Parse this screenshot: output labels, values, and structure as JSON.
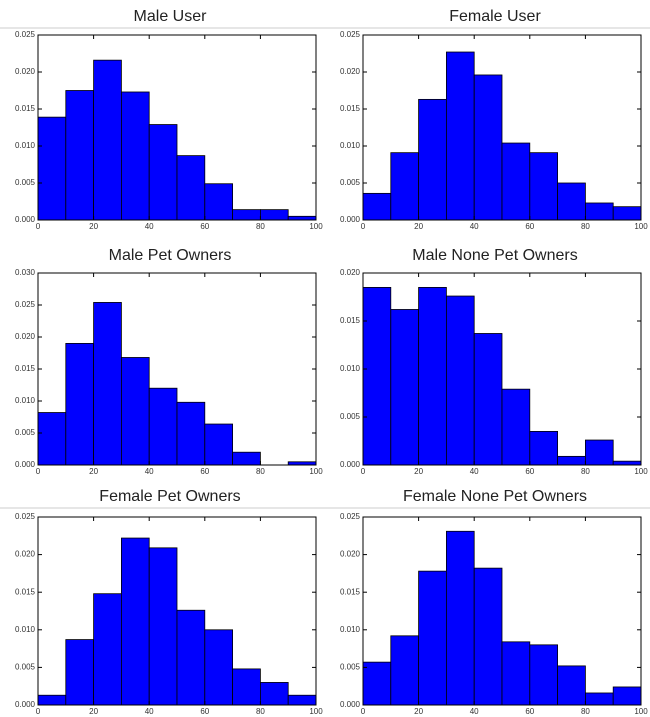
{
  "chart_data": [
    {
      "type": "histogram",
      "title": "Male User",
      "color": "#0000ff",
      "bins": [
        0,
        10,
        20,
        30,
        40,
        50,
        60,
        70,
        80,
        90,
        100
      ],
      "values": [
        0.0139,
        0.0175,
        0.0216,
        0.0173,
        0.0129,
        0.0087,
        0.0049,
        0.0014,
        0.0014,
        0.0005
      ],
      "xlim": [
        0,
        100
      ],
      "xticks": [
        0,
        20,
        40,
        60,
        80,
        100
      ],
      "ylim": [
        0,
        0.025
      ],
      "yticks": [
        {
          "value": 0,
          "label": "0.000"
        },
        {
          "value": 0.005,
          "label": "0.005"
        },
        {
          "value": 0.01,
          "label": "0.010"
        },
        {
          "value": 0.015,
          "label": "0.015"
        },
        {
          "value": 0.02,
          "label": "0.020"
        },
        {
          "value": 0.025,
          "label": "0.025"
        }
      ]
    },
    {
      "type": "histogram",
      "title": "Female User",
      "color": "#0000ff",
      "bins": [
        0,
        10,
        20,
        30,
        40,
        50,
        60,
        70,
        80,
        90,
        100
      ],
      "values": [
        0.0036,
        0.0091,
        0.0163,
        0.0227,
        0.0196,
        0.0104,
        0.0091,
        0.005,
        0.0023,
        0.0018
      ],
      "xlim": [
        0,
        100
      ],
      "xticks": [
        0,
        20,
        40,
        60,
        80,
        100
      ],
      "ylim": [
        0,
        0.025
      ],
      "yticks": [
        {
          "value": 0,
          "label": "0.000"
        },
        {
          "value": 0.005,
          "label": "0.005"
        },
        {
          "value": 0.01,
          "label": "0.010"
        },
        {
          "value": 0.015,
          "label": "0.015"
        },
        {
          "value": 0.02,
          "label": "0.020"
        },
        {
          "value": 0.025,
          "label": "0.025"
        }
      ]
    },
    {
      "type": "histogram",
      "title": "Male Pet Owners",
      "color": "#0000ff",
      "bins": [
        0,
        10,
        20,
        30,
        40,
        50,
        60,
        70,
        80,
        90,
        100
      ],
      "values": [
        0.0082,
        0.019,
        0.0254,
        0.0168,
        0.012,
        0.0098,
        0.0064,
        0.002,
        0,
        0.0005
      ],
      "xlim": [
        0,
        100
      ],
      "xticks": [
        0,
        20,
        40,
        60,
        80,
        100
      ],
      "ylim": [
        0,
        0.03
      ],
      "yticks": [
        {
          "value": 0,
          "label": "0.000"
        },
        {
          "value": 0.005,
          "label": "0.005"
        },
        {
          "value": 0.01,
          "label": "0.010"
        },
        {
          "value": 0.015,
          "label": "0.015"
        },
        {
          "value": 0.02,
          "label": "0.020"
        },
        {
          "value": 0.025,
          "label": "0.025"
        },
        {
          "value": 0.03,
          "label": "0.030"
        }
      ]
    },
    {
      "type": "histogram",
      "title": "Male None Pet Owners",
      "color": "#0000ff",
      "bins": [
        0,
        10,
        20,
        30,
        40,
        50,
        60,
        70,
        80,
        90,
        100
      ],
      "values": [
        0.0185,
        0.0162,
        0.0185,
        0.0176,
        0.0137,
        0.0079,
        0.0035,
        0.0009,
        0.0026,
        0.0004
      ],
      "xlim": [
        0,
        100
      ],
      "xticks": [
        0,
        20,
        40,
        60,
        80,
        100
      ],
      "ylim": [
        0,
        0.02
      ],
      "yticks": [
        {
          "value": 0,
          "label": "0.000"
        },
        {
          "value": 0.005,
          "label": "0.005"
        },
        {
          "value": 0.01,
          "label": "0.010"
        },
        {
          "value": 0.015,
          "label": "0.015"
        },
        {
          "value": 0.02,
          "label": "0.020"
        }
      ]
    },
    {
      "type": "histogram",
      "title": "Female Pet Owners",
      "color": "#0000ff",
      "bins": [
        0,
        10,
        20,
        30,
        40,
        50,
        60,
        70,
        80,
        90,
        100
      ],
      "values": [
        0.0013,
        0.0087,
        0.0148,
        0.0222,
        0.0209,
        0.0126,
        0.01,
        0.0048,
        0.003,
        0.0013
      ],
      "xlim": [
        0,
        100
      ],
      "xticks": [
        0,
        20,
        40,
        60,
        80,
        100
      ],
      "ylim": [
        0,
        0.025
      ],
      "yticks": [
        {
          "value": 0,
          "label": "0.000"
        },
        {
          "value": 0.005,
          "label": "0.005"
        },
        {
          "value": 0.01,
          "label": "0.010"
        },
        {
          "value": 0.015,
          "label": "0.015"
        },
        {
          "value": 0.02,
          "label": "0.020"
        },
        {
          "value": 0.025,
          "label": "0.025"
        }
      ]
    },
    {
      "type": "histogram",
      "title": "Female None Pet Owners",
      "color": "#0000ff",
      "bins": [
        0,
        10,
        20,
        30,
        40,
        50,
        60,
        70,
        80,
        90,
        100
      ],
      "values": [
        0.0057,
        0.0092,
        0.0178,
        0.0231,
        0.0182,
        0.0084,
        0.008,
        0.0052,
        0.0016,
        0.0024
      ],
      "xlim": [
        0,
        100
      ],
      "xticks": [
        0,
        20,
        40,
        60,
        80,
        100
      ],
      "ylim": [
        0,
        0.025
      ],
      "yticks": [
        {
          "value": 0,
          "label": "0.000"
        },
        {
          "value": 0.005,
          "label": "0.005"
        },
        {
          "value": 0.01,
          "label": "0.010"
        },
        {
          "value": 0.015,
          "label": "0.015"
        },
        {
          "value": 0.02,
          "label": "0.020"
        },
        {
          "value": 0.025,
          "label": "0.025"
        }
      ]
    }
  ]
}
